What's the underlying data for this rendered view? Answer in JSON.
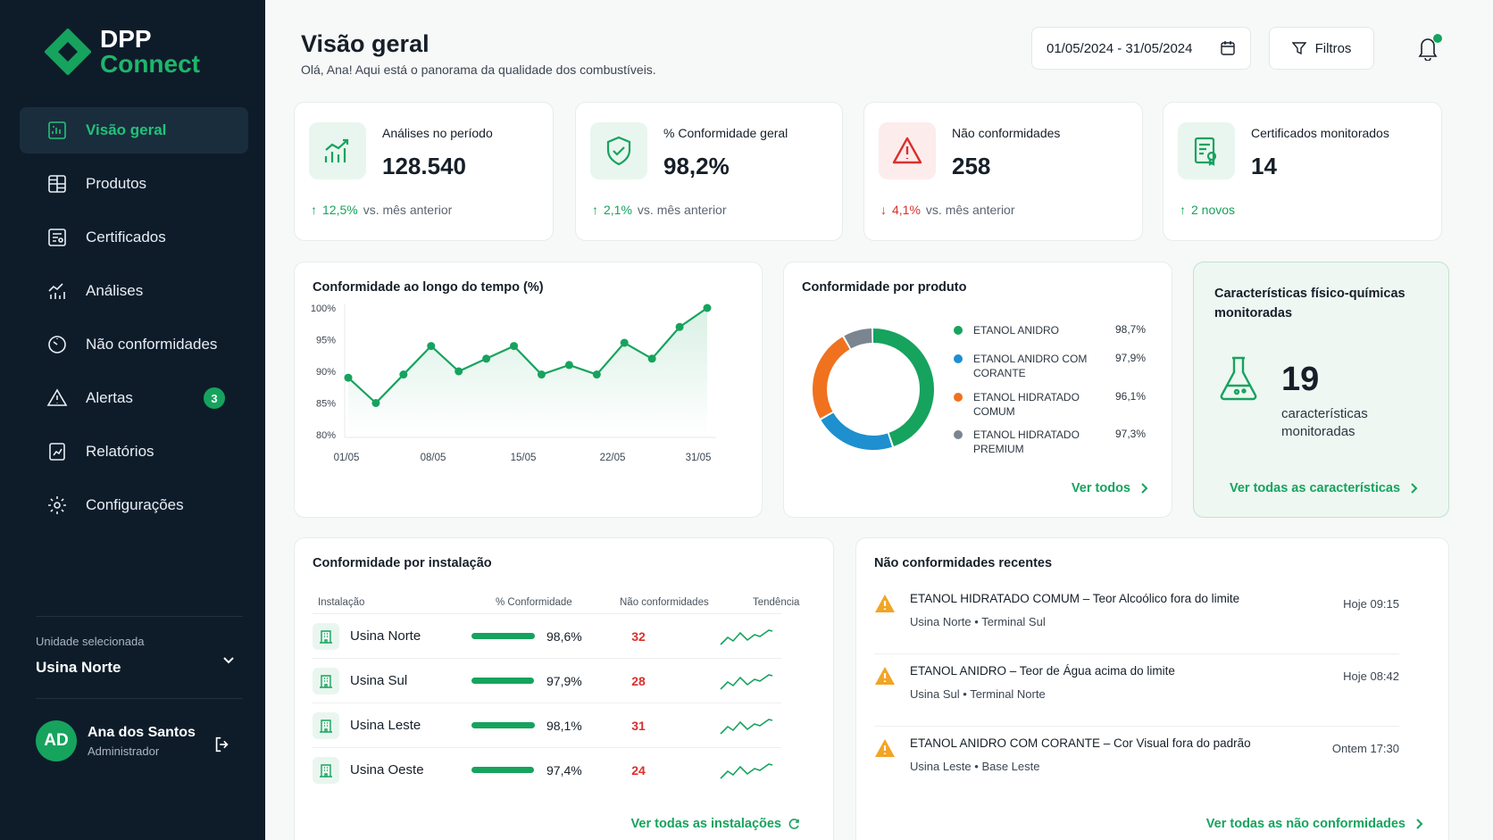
{
  "brand": {
    "line1": "DPP",
    "line2": "Connect",
    "accent": "#16a35e"
  },
  "nav": [
    {
      "label": "Visão geral",
      "icon": "dashboard-icon",
      "active": true
    },
    {
      "label": "Produtos",
      "icon": "grid-icon"
    },
    {
      "label": "Certificados",
      "icon": "certificate-icon"
    },
    {
      "label": "Análises",
      "icon": "analysis-icon"
    },
    {
      "label": "Não conformidades",
      "icon": "gauge-icon"
    },
    {
      "label": "Alertas",
      "icon": "alert-icon",
      "badge": "3"
    },
    {
      "label": "Relatórios",
      "icon": "report-icon"
    },
    {
      "label": "Configurações",
      "icon": "gear-icon"
    }
  ],
  "unit": {
    "label": "Unidade selecionada",
    "value": "Usina Norte"
  },
  "user": {
    "initials": "AD",
    "name": "Ana dos Santos",
    "role": "Administrador"
  },
  "header": {
    "title": "Visão geral",
    "subtitle": "Olá, Ana! Aqui está o panorama da qualidade dos combustíveis.",
    "date_range": "01/05/2024 - 31/05/2024",
    "filters": "Filtros"
  },
  "kpis": [
    {
      "label": "Análises no período",
      "value": "128.540",
      "trend_pct": "12,5%",
      "trend_text": "vs. mês anterior",
      "direction": "up"
    },
    {
      "label": "% Conformidade geral",
      "value": "98,2%",
      "trend_pct": "2,1%",
      "trend_text": "vs. mês anterior",
      "direction": "up"
    },
    {
      "label": "Não conformidades",
      "value": "258",
      "trend_pct": "4,1%",
      "trend_text": "vs. mês anterior",
      "direction": "down"
    },
    {
      "label": "Certificados monitorados",
      "value": "14",
      "trend_pct": "2 novos",
      "trend_text": "",
      "direction": "up"
    }
  ],
  "chart_data": [
    {
      "type": "line",
      "title": "Conformidade ao longo do tempo (%)",
      "x_ticks": [
        "01/05",
        "08/05",
        "15/05",
        "22/05",
        "31/05"
      ],
      "y_ticks": [
        "100%",
        "95%",
        "90%",
        "85%",
        "80%"
      ],
      "ylim": [
        80,
        100
      ],
      "series": [
        {
          "values": [
            89,
            85,
            89.5,
            94,
            90,
            92,
            94,
            89.5,
            91,
            89.5,
            94.5,
            92,
            97,
            100
          ]
        }
      ]
    },
    {
      "type": "pie",
      "title": "Conformidade por produto",
      "slices": [
        {
          "label": "ETANOL ANIDRO",
          "value": "98,7%",
          "share": 45,
          "color": "#16a35e"
        },
        {
          "label": "ETANOL ANIDRO COM CORANTE",
          "value": "97,9%",
          "share": 22,
          "color": "#1e8fcf"
        },
        {
          "label": "ETANOL HIDRATADO COMUM",
          "value": "96,1%",
          "share": 25,
          "color": "#f0721e"
        },
        {
          "label": "ETANOL HIDRATADO PREMIUM",
          "value": "97,3%",
          "share": 8,
          "color": "#7a8590"
        }
      ]
    }
  ],
  "donut_link": "Ver todos",
  "characteristics": {
    "title": "Características físico-químicas monitoradas",
    "value": "19",
    "caption": "características monitoradas",
    "link": "Ver todas as características"
  },
  "installations": {
    "title": "Conformidade por instalação",
    "headers": [
      "Instalação",
      "% Conformidade",
      "Não conformidades",
      "Tendência"
    ],
    "rows": [
      {
        "name": "Usina Norte",
        "pct": "98,6%",
        "fill": 0.986,
        "nc": "32"
      },
      {
        "name": "Usina Sul",
        "pct": "97,9%",
        "fill": 0.979,
        "nc": "28"
      },
      {
        "name": "Usina Leste",
        "pct": "98,1%",
        "fill": 0.981,
        "nc": "31"
      },
      {
        "name": "Usina Oeste",
        "pct": "97,4%",
        "fill": 0.974,
        "nc": "24"
      }
    ],
    "link": "Ver todas as instalações"
  },
  "recent_nc": {
    "title": "Não conformidades recentes",
    "items": [
      {
        "title": "ETANOL HIDRATADO COMUM – Teor Alcoólico fora do limite",
        "site": "Usina Norte",
        "terminal": "Terminal Sul",
        "time": "Hoje 09:15"
      },
      {
        "title": "ETANOL ANIDRO – Teor de Água acima do limite",
        "site": "Usina Sul",
        "terminal": "Terminal Norte",
        "time": "Hoje 08:42"
      },
      {
        "title": "ETANOL ANIDRO COM CORANTE – Cor Visual fora do padrão",
        "site": "Usina Leste",
        "terminal": "Base Leste",
        "time": "Ontem 17:30"
      }
    ],
    "link": "Ver todas as não conformidades"
  }
}
